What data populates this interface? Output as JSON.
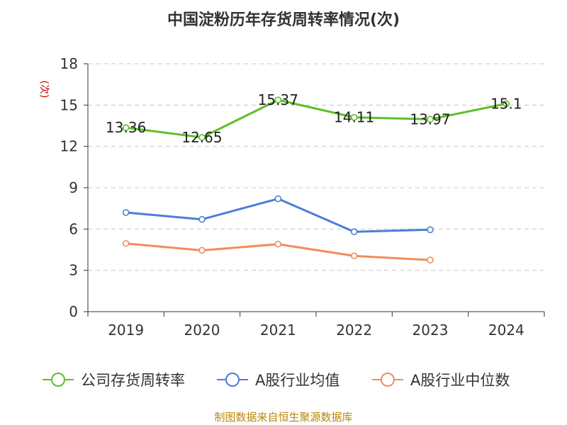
{
  "title": "中国淀粉历年存货周转率情况(次)",
  "source": "制图数据来自恒生聚源数据库",
  "chart_data": {
    "type": "line",
    "ylabel": "(次)",
    "ylim": [
      0,
      18
    ],
    "yticks": [
      0,
      3,
      6,
      9,
      12,
      15,
      18
    ],
    "grid": true,
    "legend_position": "bottom",
    "categories": [
      "2019",
      "2020",
      "2021",
      "2022",
      "2023",
      "2024"
    ],
    "series": [
      {
        "name": "公司存货周转率",
        "color": "#5cc028",
        "values": [
          13.36,
          12.65,
          15.37,
          14.11,
          13.97,
          15.1
        ],
        "labels": [
          "13.36",
          "12.65",
          "15.37",
          "14.11",
          "13.97",
          "15.1"
        ]
      },
      {
        "name": "A股行业均值",
        "color": "#4a7fd9",
        "values": [
          7.2,
          6.7,
          8.2,
          5.8,
          5.95,
          null
        ]
      },
      {
        "name": "A股行业中位数",
        "color": "#f28c5b",
        "values": [
          4.95,
          4.45,
          4.9,
          4.05,
          3.75,
          null
        ]
      }
    ]
  }
}
